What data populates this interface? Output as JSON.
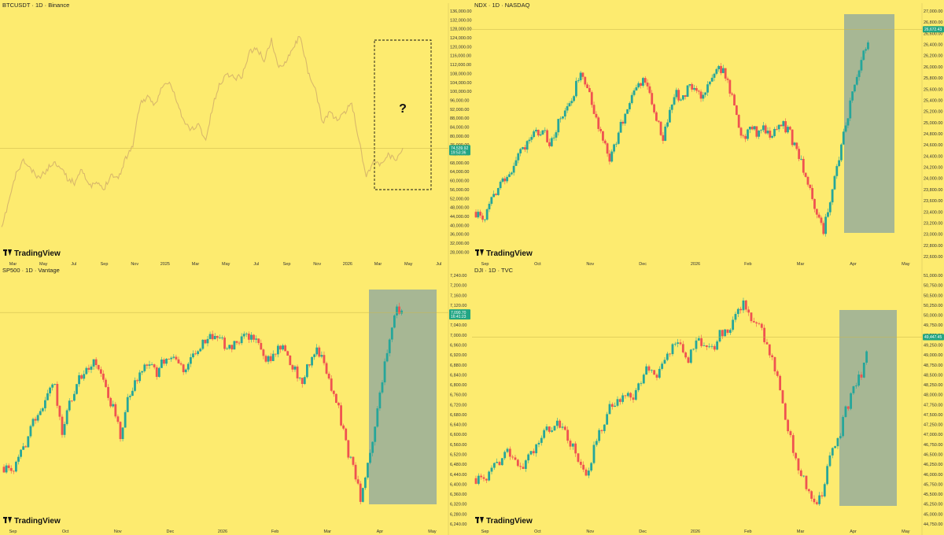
{
  "colors": {
    "background": "#fdeb6f",
    "up": "#26a69a",
    "down": "#ef5350",
    "line": "#d9b86a",
    "highlight": "#8aa6a0",
    "grid": "#e2cf5b",
    "price_tag": "#22a583"
  },
  "brand_text": "TradingView",
  "chart_data": [
    {
      "id": "btc",
      "type": "line",
      "title": "BTCUSDT · 1D · Binance",
      "ylim": [
        26000,
        136000
      ],
      "y_ticks": [
        "136,000.00",
        "132,000.00",
        "128,000.00",
        "124,000.00",
        "120,000.00",
        "116,000.00",
        "112,000.00",
        "108,000.00",
        "104,000.00",
        "100,000.00",
        "96,000.00",
        "92,000.00",
        "88,000.00",
        "84,000.00",
        "80,000.00",
        "76,000.00",
        "72,000.00",
        "68,000.00",
        "64,000.00",
        "60,000.00",
        "56,000.00",
        "52,000.00",
        "48,000.00",
        "44,000.00",
        "40,000.00",
        "36,000.00",
        "32,000.00",
        "28,000.00"
      ],
      "x_ticks": [
        "Mar",
        "May",
        "Jul",
        "Sep",
        "Nov",
        "2025",
        "Mar",
        "May",
        "Jul",
        "Sep",
        "Nov",
        "2026",
        "Mar",
        "May",
        "Jul"
      ],
      "last_price": "74,539.92",
      "last_time": "19:53:36",
      "annotation": "?",
      "series": [
        {
          "date": "2024-02",
          "value": 38000
        },
        {
          "date": "2024-02",
          "value": 51000
        },
        {
          "date": "2024-03",
          "value": 63000
        },
        {
          "date": "2024-03",
          "value": 69000
        },
        {
          "date": "2024-04",
          "value": 65000
        },
        {
          "date": "2024-04",
          "value": 61000
        },
        {
          "date": "2024-05",
          "value": 64000
        },
        {
          "date": "2024-05",
          "value": 68000
        },
        {
          "date": "2024-06",
          "value": 67000
        },
        {
          "date": "2024-06",
          "value": 61000
        },
        {
          "date": "2024-07",
          "value": 59000
        },
        {
          "date": "2024-07",
          "value": 66000
        },
        {
          "date": "2024-08",
          "value": 57000
        },
        {
          "date": "2024-08",
          "value": 59000
        },
        {
          "date": "2024-09",
          "value": 56000
        },
        {
          "date": "2024-09",
          "value": 63000
        },
        {
          "date": "2024-10",
          "value": 61000
        },
        {
          "date": "2024-10",
          "value": 70000
        },
        {
          "date": "2024-11",
          "value": 76000
        },
        {
          "date": "2024-11",
          "value": 95000
        },
        {
          "date": "2024-12",
          "value": 97000
        },
        {
          "date": "2024-12",
          "value": 94000
        },
        {
          "date": "2025-01",
          "value": 102000
        },
        {
          "date": "2025-01",
          "value": 104000
        },
        {
          "date": "2025-02",
          "value": 96000
        },
        {
          "date": "2025-02",
          "value": 86000
        },
        {
          "date": "2025-03",
          "value": 83000
        },
        {
          "date": "2025-03",
          "value": 85000
        },
        {
          "date": "2025-04",
          "value": 78000
        },
        {
          "date": "2025-04",
          "value": 94000
        },
        {
          "date": "2025-05",
          "value": 104000
        },
        {
          "date": "2025-05",
          "value": 108000
        },
        {
          "date": "2025-06",
          "value": 106000
        },
        {
          "date": "2025-06",
          "value": 107000
        },
        {
          "date": "2025-07",
          "value": 118000
        },
        {
          "date": "2025-07",
          "value": 119000
        },
        {
          "date": "2025-08",
          "value": 114000
        },
        {
          "date": "2025-08",
          "value": 123000
        },
        {
          "date": "2025-09",
          "value": 110000
        },
        {
          "date": "2025-09",
          "value": 114000
        },
        {
          "date": "2025-10",
          "value": 120000
        },
        {
          "date": "2025-10",
          "value": 125000
        },
        {
          "date": "2025-10",
          "value": 108000
        },
        {
          "date": "2025-11",
          "value": 101000
        },
        {
          "date": "2025-11",
          "value": 86000
        },
        {
          "date": "2025-12",
          "value": 91000
        },
        {
          "date": "2025-12",
          "value": 87000
        },
        {
          "date": "2026-01",
          "value": 90000
        },
        {
          "date": "2026-01",
          "value": 95000
        },
        {
          "date": "2026-02",
          "value": 78000
        },
        {
          "date": "2026-02",
          "value": 62000
        },
        {
          "date": "2026-02",
          "value": 69000
        },
        {
          "date": "2026-03",
          "value": 67000
        },
        {
          "date": "2026-03",
          "value": 72000
        },
        {
          "date": "2026-04",
          "value": 69000
        },
        {
          "date": "2026-04",
          "value": 74539
        }
      ]
    },
    {
      "id": "ndx",
      "type": "candlestick",
      "title": "NDX · 1D · NASDAQ",
      "ylim": [
        22600,
        27000
      ],
      "y_ticks": [
        "27,000.00",
        "26,800.00",
        "26,600.00",
        "26,400.00",
        "26,200.00",
        "26,000.00",
        "25,800.00",
        "25,600.00",
        "25,400.00",
        "25,200.00",
        "25,000.00",
        "24,800.00",
        "24,600.00",
        "24,400.00",
        "24,200.00",
        "24,000.00",
        "23,800.00",
        "23,600.00",
        "23,400.00",
        "23,200.00",
        "23,000.00",
        "22,800.00",
        "22,600.00"
      ],
      "x_ticks": [
        "Sep",
        "Oct",
        "Nov",
        "Dec",
        "2026",
        "Feb",
        "Mar",
        "Apr",
        "May"
      ],
      "last_price": "26,672.43",
      "path": [
        23400,
        23200,
        23500,
        23750,
        23900,
        24100,
        24300,
        24500,
        24700,
        24800,
        24850,
        24650,
        24900,
        25100,
        25300,
        25650,
        25900,
        25500,
        25100,
        24700,
        24250,
        24700,
        25050,
        25400,
        25650,
        25750,
        25550,
        25100,
        24700,
        25200,
        25500,
        25400,
        25650,
        25550,
        25450,
        25700,
        25900,
        26000,
        25600,
        25150,
        24700,
        25000,
        24800,
        24950,
        24700,
        24900,
        24950,
        24800,
        24450,
        24150,
        23800,
        23300,
        23050,
        23650,
        24200,
        24800,
        25300,
        25800,
        26200,
        26672
      ]
    },
    {
      "id": "spx",
      "type": "candlestick",
      "title": "SP500 · 1D · Vantage",
      "ylim": [
        6240,
        7240
      ],
      "y_ticks": [
        "7,240.00",
        "7,200.00",
        "7,160.00",
        "7,120.00",
        "7,080.00",
        "7,040.00",
        "7,000.00",
        "6,960.00",
        "6,920.00",
        "6,880.00",
        "6,840.00",
        "6,800.00",
        "6,760.00",
        "6,720.00",
        "6,680.00",
        "6,640.00",
        "6,600.00",
        "6,560.00",
        "6,520.00",
        "6,480.00",
        "6,440.00",
        "6,400.00",
        "6,360.00",
        "6,320.00",
        "6,280.00",
        "6,240.00"
      ],
      "x_ticks": [
        "Sep",
        "Oct",
        "Nov",
        "Dec",
        "2026",
        "Feb",
        "Mar",
        "Apr",
        "May"
      ],
      "last_price": "7,090.70",
      "last_time": "16:41:23",
      "path": [
        6470,
        6440,
        6500,
        6560,
        6640,
        6700,
        6760,
        6790,
        6600,
        6720,
        6800,
        6860,
        6890,
        6860,
        6780,
        6700,
        6600,
        6740,
        6820,
        6860,
        6870,
        6850,
        6900,
        6920,
        6890,
        6850,
        6930,
        6960,
        6990,
        6990,
        6970,
        6940,
        6960,
        7000,
        6990,
        6960,
        6880,
        6930,
        6960,
        6920,
        6860,
        6820,
        6890,
        6950,
        6880,
        6780,
        6700,
        6560,
        6460,
        6340,
        6480,
        6620,
        6820,
        7000,
        7110,
        7090
      ]
    },
    {
      "id": "dji",
      "type": "candlestick",
      "title": "DJI · 1D · TVC",
      "ylim": [
        44750,
        51000
      ],
      "y_ticks": [
        "51,000.00",
        "50,750.00",
        "50,500.00",
        "50,250.00",
        "50,000.00",
        "49,750.00",
        "49,500.00",
        "49,250.00",
        "49,000.00",
        "48,750.00",
        "48,500.00",
        "48,250.00",
        "48,000.00",
        "47,750.00",
        "47,500.00",
        "47,250.00",
        "47,000.00",
        "46,750.00",
        "46,500.00",
        "46,250.00",
        "46,000.00",
        "45,750.00",
        "45,500.00",
        "45,250.00",
        "45,000.00",
        "44,750.00"
      ],
      "x_ticks": [
        "Sep",
        "Oct",
        "Nov",
        "Dec",
        "2026",
        "Feb",
        "Mar",
        "Apr",
        "May"
      ],
      "last_price": "49,447.45",
      "path": [
        45900,
        45800,
        46100,
        46300,
        46500,
        46400,
        46100,
        46500,
        46800,
        47100,
        47200,
        47300,
        46800,
        46300,
        45900,
        46600,
        47200,
        47700,
        47900,
        48000,
        47800,
        48400,
        48700,
        48500,
        48900,
        49200,
        49300,
        48900,
        49400,
        49200,
        49100,
        49500,
        49500,
        50000,
        50300,
        49800,
        49700,
        49300,
        48700,
        47800,
        46900,
        46200,
        45700,
        45300,
        45400,
        46500,
        46800,
        47600,
        48100,
        48500,
        49447
      ]
    }
  ]
}
